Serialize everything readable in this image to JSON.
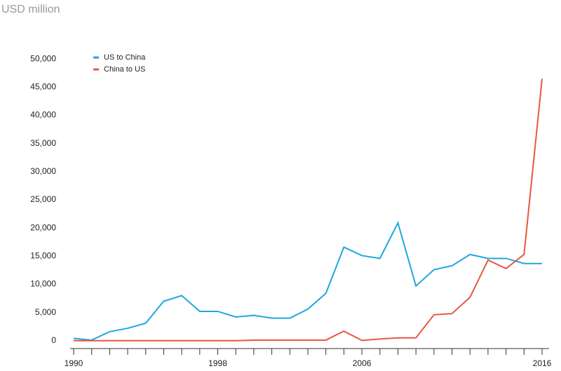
{
  "chart_data": {
    "type": "line",
    "title": "USD million",
    "x": [
      1990,
      1991,
      1992,
      1993,
      1994,
      1995,
      1996,
      1997,
      1998,
      1999,
      2000,
      2001,
      2002,
      2003,
      2004,
      2005,
      2006,
      2007,
      2008,
      2009,
      2010,
      2011,
      2012,
      2013,
      2014,
      2015,
      2016
    ],
    "series": [
      {
        "name": "US to China",
        "color": "#1ea7e1",
        "values": [
          400,
          100,
          1600,
          2200,
          3100,
          7000,
          8000,
          5200,
          5200,
          4200,
          4500,
          4000,
          4000,
          5600,
          8400,
          16600,
          15100,
          14600,
          20900,
          9700,
          12600,
          13300,
          15300,
          14600,
          14600,
          13700,
          13700
        ]
      },
      {
        "name": "China to US",
        "color": "#e8573f",
        "values": [
          0,
          0,
          0,
          0,
          0,
          0,
          0,
          0,
          0,
          0,
          100,
          100,
          100,
          100,
          100,
          1700,
          50,
          300,
          500,
          500,
          4600,
          4800,
          7700,
          14300,
          12800,
          15300,
          46500
        ]
      }
    ],
    "xlim": [
      1990,
      2016
    ],
    "xticks": [
      1990,
      1998,
      2006,
      2016
    ],
    "ylim": [
      -1400,
      53000
    ],
    "yticks": [
      0,
      {
        "value": 5000,
        "label": "5,000"
      },
      {
        "value": 10000,
        "label": "10,000"
      },
      {
        "value": 15000,
        "label": "15,000"
      },
      {
        "value": 20000,
        "label": "20,000"
      },
      {
        "value": 25000,
        "label": "25,000"
      },
      {
        "value": 30000,
        "label": "30,000"
      },
      {
        "value": 35000,
        "label": "35,000"
      },
      {
        "value": 40000,
        "label": "40,000"
      },
      {
        "value": 45000,
        "label": "45,000"
      },
      {
        "value": 50000,
        "label": "50,000"
      }
    ],
    "grid": false
  }
}
